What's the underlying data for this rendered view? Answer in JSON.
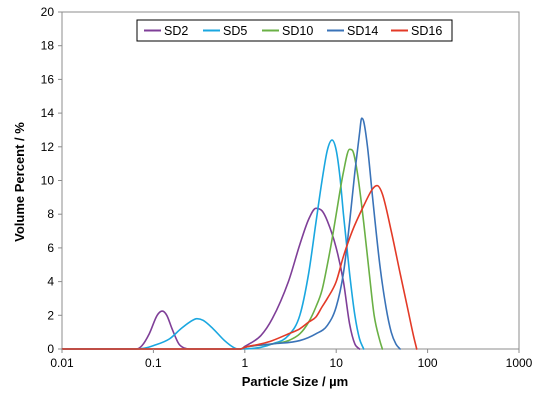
{
  "chart_data": {
    "type": "line",
    "title": "",
    "xlabel": "Particle Size / µm",
    "ylabel": "Volume Percent / %",
    "xscale": "log",
    "xlim": [
      0.01,
      1000
    ],
    "ylim": [
      0,
      20
    ],
    "x_ticks": [
      0.01,
      0.1,
      1,
      10,
      100,
      1000
    ],
    "x_tick_labels": [
      "0.01",
      "0.1",
      "1",
      "10",
      "100",
      "1000"
    ],
    "y_ticks": [
      0,
      2,
      4,
      6,
      8,
      10,
      12,
      14,
      16,
      18,
      20
    ],
    "y_tick_labels": [
      "0",
      "2",
      "4",
      "6",
      "8",
      "10",
      "12",
      "14",
      "16",
      "18",
      "20"
    ],
    "grid": false,
    "legend_position": "top-center",
    "series": [
      {
        "name": "SD2",
        "color": "#7f3f98",
        "points": [
          [
            0.01,
            0
          ],
          [
            0.065,
            0
          ],
          [
            0.075,
            0.2
          ],
          [
            0.09,
            0.9
          ],
          [
            0.11,
            2.0
          ],
          [
            0.125,
            2.25
          ],
          [
            0.14,
            2.0
          ],
          [
            0.16,
            1.2
          ],
          [
            0.19,
            0.3
          ],
          [
            0.22,
            0.05
          ],
          [
            0.25,
            0
          ],
          [
            0.9,
            0
          ],
          [
            1,
            0.15
          ],
          [
            1.5,
            0.8
          ],
          [
            2,
            1.8
          ],
          [
            3,
            4
          ],
          [
            4,
            6.2
          ],
          [
            5,
            7.7
          ],
          [
            6,
            8.35
          ],
          [
            7,
            8.2
          ],
          [
            8,
            7.6
          ],
          [
            10,
            6
          ],
          [
            12,
            4
          ],
          [
            14,
            1.5
          ],
          [
            16,
            0.3
          ],
          [
            18,
            0
          ]
        ]
      },
      {
        "name": "SD5",
        "color": "#1aa7e0",
        "points": [
          [
            0.01,
            0
          ],
          [
            0.06,
            0
          ],
          [
            0.08,
            0.05
          ],
          [
            0.1,
            0.2
          ],
          [
            0.15,
            0.6
          ],
          [
            0.2,
            1.2
          ],
          [
            0.25,
            1.6
          ],
          [
            0.3,
            1.8
          ],
          [
            0.35,
            1.7
          ],
          [
            0.45,
            1.2
          ],
          [
            0.6,
            0.5
          ],
          [
            0.75,
            0.1
          ],
          [
            0.85,
            0
          ],
          [
            1.5,
            0.1
          ],
          [
            2,
            0.3
          ],
          [
            3,
            0.8
          ],
          [
            4,
            2
          ],
          [
            5,
            4.5
          ],
          [
            6,
            7.5
          ],
          [
            7,
            10
          ],
          [
            8,
            11.8
          ],
          [
            9,
            12.4
          ],
          [
            10,
            11.8
          ],
          [
            11,
            10.2
          ],
          [
            12,
            8
          ],
          [
            14,
            4.5
          ],
          [
            16,
            2
          ],
          [
            18,
            0.6
          ],
          [
            20,
            0
          ]
        ]
      },
      {
        "name": "SD10",
        "color": "#6ab045",
        "points": [
          [
            0.01,
            0
          ],
          [
            0.9,
            0
          ],
          [
            1,
            0.1
          ],
          [
            2,
            0.3
          ],
          [
            3,
            0.5
          ],
          [
            4,
            0.9
          ],
          [
            5,
            1.6
          ],
          [
            6,
            2.5
          ],
          [
            7,
            3.5
          ],
          [
            8,
            5
          ],
          [
            9,
            6.5
          ],
          [
            10,
            8
          ],
          [
            12,
            10.5
          ],
          [
            14,
            11.85
          ],
          [
            15,
            11.8
          ],
          [
            17,
            10.5
          ],
          [
            20,
            7.5
          ],
          [
            23,
            4.5
          ],
          [
            26,
            2
          ],
          [
            30,
            0.5
          ],
          [
            32,
            0
          ]
        ]
      },
      {
        "name": "SD14",
        "color": "#3a73b8",
        "points": [
          [
            0.01,
            0
          ],
          [
            0.9,
            0
          ],
          [
            1,
            0.1
          ],
          [
            2,
            0.3
          ],
          [
            4,
            0.5
          ],
          [
            6,
            0.9
          ],
          [
            8,
            1.4
          ],
          [
            10,
            2.5
          ],
          [
            12,
            4.5
          ],
          [
            14,
            7.5
          ],
          [
            16,
            10.5
          ],
          [
            18,
            12.8
          ],
          [
            19,
            13.7
          ],
          [
            20,
            13.5
          ],
          [
            22,
            12
          ],
          [
            25,
            9
          ],
          [
            30,
            5
          ],
          [
            35,
            2.5
          ],
          [
            40,
            1
          ],
          [
            45,
            0.3
          ],
          [
            50,
            0
          ]
        ]
      },
      {
        "name": "SD16",
        "color": "#e33a27",
        "points": [
          [
            0.01,
            0
          ],
          [
            0.9,
            0
          ],
          [
            1,
            0.1
          ],
          [
            1.5,
            0.3
          ],
          [
            2,
            0.5
          ],
          [
            3,
            0.9
          ],
          [
            4,
            1.2
          ],
          [
            5,
            1.6
          ],
          [
            6,
            1.9
          ],
          [
            7,
            2.5
          ],
          [
            8,
            3
          ],
          [
            10,
            4
          ],
          [
            12,
            5.5
          ],
          [
            15,
            7
          ],
          [
            20,
            8.5
          ],
          [
            25,
            9.5
          ],
          [
            28,
            9.7
          ],
          [
            32,
            9.2
          ],
          [
            40,
            7
          ],
          [
            50,
            4.5
          ],
          [
            60,
            2.5
          ],
          [
            70,
            0.8
          ],
          [
            76,
            0
          ]
        ]
      }
    ]
  }
}
